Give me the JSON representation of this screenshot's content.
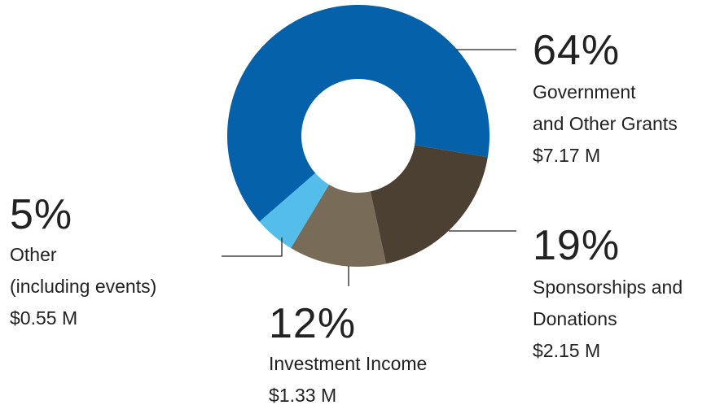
{
  "chart_data": {
    "type": "pie",
    "style": "donut",
    "slices": [
      {
        "label_lines": [
          "Government",
          "and Other Grants"
        ],
        "value_text": "$7.17 M",
        "percent": 64,
        "percent_text": "64%",
        "value": 7.17,
        "color": "#0561a9"
      },
      {
        "label_lines": [
          "Sponsorships and",
          "Donations"
        ],
        "value_text": "$2.15 M",
        "percent": 19,
        "percent_text": "19%",
        "value": 2.15,
        "color": "#4b4032"
      },
      {
        "label_lines": [
          "Investment Income"
        ],
        "value_text": "$1.33 M",
        "percent": 12,
        "percent_text": "12%",
        "value": 1.33,
        "color": "#786c58"
      },
      {
        "label_lines": [
          "Other",
          "(including events)"
        ],
        "value_text": "$0.55 M",
        "percent": 5,
        "percent_text": "5%",
        "value": 0.55,
        "color": "#55bdea"
      }
    ],
    "leader_line_color": "#222222"
  }
}
